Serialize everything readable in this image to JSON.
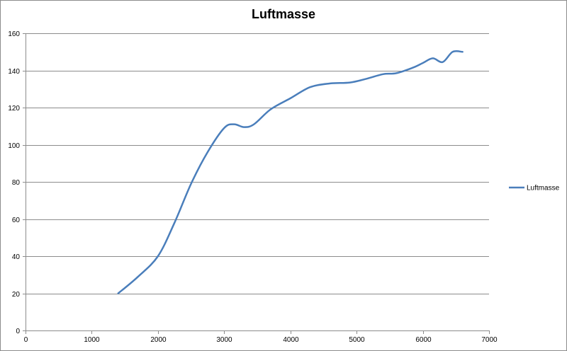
{
  "chart_data": {
    "type": "line",
    "title": "Luftmasse",
    "xlabel": "",
    "ylabel": "",
    "xlim": [
      0,
      7000
    ],
    "ylim": [
      0,
      160
    ],
    "xticks": [
      0,
      1000,
      2000,
      3000,
      4000,
      5000,
      6000,
      7000
    ],
    "yticks": [
      0,
      20,
      40,
      60,
      80,
      100,
      120,
      140,
      160
    ],
    "grid": "horizontal",
    "legend_position": "right",
    "series": [
      {
        "name": "Luftmasse",
        "color": "#4a7ebb",
        "x": [
          1400,
          1700,
          2000,
          2250,
          2500,
          2750,
          3000,
          3150,
          3300,
          3450,
          3700,
          4000,
          4300,
          4600,
          4900,
          5150,
          5400,
          5600,
          5850,
          6000,
          6150,
          6300,
          6450,
          6600
        ],
        "y": [
          20,
          29,
          40,
          58,
          79,
          96,
          109,
          111,
          109.5,
          111,
          119,
          125,
          131,
          133,
          133.5,
          135.5,
          138,
          138.5,
          141.5,
          144,
          146.5,
          144.5,
          150,
          150
        ]
      }
    ]
  }
}
